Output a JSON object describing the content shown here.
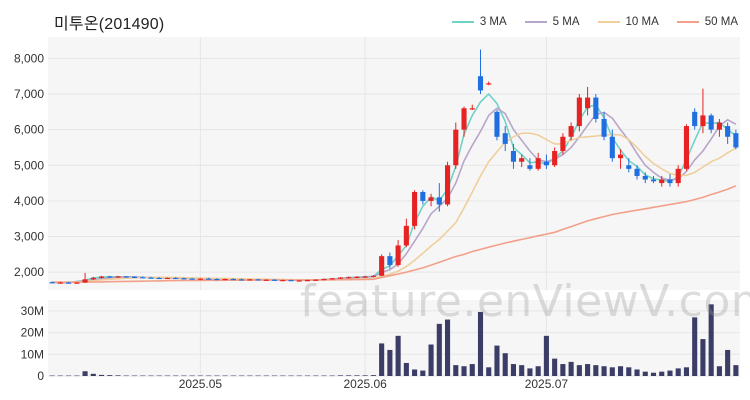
{
  "title": "미투온(201490)",
  "legend": [
    {
      "name": "3 MA",
      "color": "#6fd3c8"
    },
    {
      "name": "5 MA",
      "color": "#b7a6c9"
    },
    {
      "name": "10 MA",
      "color": "#f0cf9c"
    },
    {
      "name": "50 MA",
      "color": "#f2a08a"
    }
  ],
  "watermark": "feature.enViewV.com",
  "colors": {
    "up": "#e62222",
    "down": "#1f6fe0",
    "volume": "#3b3d66",
    "grid": "#e6e6e6",
    "panel": "#f6f6f6"
  },
  "chart_data": {
    "type": "candlestick",
    "price_axis": {
      "ticks": [
        2000,
        3000,
        4000,
        5000,
        6000,
        7000,
        8000
      ],
      "labels": [
        "2,000",
        "3,000",
        "4,000",
        "5,000",
        "6,000",
        "7,000",
        "8,000"
      ],
      "ylim": [
        1500,
        8600
      ]
    },
    "volume_axis": {
      "ticks": [
        0,
        10,
        20,
        30
      ],
      "labels": [
        "0",
        "10M",
        "20M",
        "30M"
      ],
      "unit": "M",
      "ylim": [
        0,
        35
      ]
    },
    "date_ticks": [
      {
        "index": 18,
        "label": "2025.05"
      },
      {
        "index": 38,
        "label": "2025.06"
      },
      {
        "index": 60,
        "label": "2025.07"
      }
    ],
    "candles": [
      [
        1720,
        1740,
        1690,
        1700,
        0.2
      ],
      [
        1700,
        1730,
        1680,
        1710,
        0.2
      ],
      [
        1710,
        1730,
        1690,
        1700,
        0.2
      ],
      [
        1700,
        1720,
        1680,
        1710,
        0.2
      ],
      [
        1710,
        1980,
        1700,
        1800,
        2.2
      ],
      [
        1800,
        1870,
        1780,
        1840,
        1.0
      ],
      [
        1840,
        1900,
        1820,
        1880,
        0.5
      ],
      [
        1880,
        1900,
        1850,
        1870,
        0.4
      ],
      [
        1870,
        1900,
        1850,
        1880,
        0.3
      ],
      [
        1880,
        1890,
        1860,
        1870,
        0.2
      ],
      [
        1870,
        1890,
        1850,
        1860,
        0.2
      ],
      [
        1860,
        1880,
        1840,
        1850,
        0.2
      ],
      [
        1850,
        1870,
        1830,
        1840,
        0.2
      ],
      [
        1840,
        1860,
        1820,
        1830,
        0.2
      ],
      [
        1830,
        1850,
        1810,
        1840,
        0.2
      ],
      [
        1840,
        1860,
        1820,
        1830,
        0.2
      ],
      [
        1830,
        1850,
        1810,
        1820,
        0.2
      ],
      [
        1820,
        1840,
        1800,
        1810,
        0.2
      ],
      [
        1810,
        1830,
        1790,
        1820,
        0.2
      ],
      [
        1820,
        1840,
        1800,
        1810,
        0.2
      ],
      [
        1810,
        1830,
        1790,
        1800,
        0.2
      ],
      [
        1800,
        1820,
        1780,
        1810,
        0.2
      ],
      [
        1810,
        1830,
        1790,
        1800,
        0.2
      ],
      [
        1800,
        1820,
        1780,
        1790,
        0.2
      ],
      [
        1790,
        1810,
        1770,
        1800,
        0.2
      ],
      [
        1800,
        1810,
        1770,
        1780,
        0.2
      ],
      [
        1780,
        1800,
        1760,
        1790,
        0.2
      ],
      [
        1790,
        1800,
        1760,
        1770,
        0.2
      ],
      [
        1770,
        1790,
        1750,
        1780,
        0.2
      ],
      [
        1780,
        1790,
        1750,
        1760,
        0.2
      ],
      [
        1760,
        1780,
        1740,
        1770,
        0.2
      ],
      [
        1770,
        1790,
        1750,
        1780,
        0.2
      ],
      [
        1780,
        1800,
        1760,
        1790,
        0.2
      ],
      [
        1790,
        1820,
        1770,
        1810,
        0.2
      ],
      [
        1810,
        1840,
        1790,
        1830,
        0.2
      ],
      [
        1830,
        1860,
        1810,
        1850,
        0.3
      ],
      [
        1850,
        1880,
        1830,
        1860,
        0.3
      ],
      [
        1860,
        1890,
        1840,
        1870,
        0.3
      ],
      [
        1870,
        1900,
        1850,
        1880,
        0.3
      ],
      [
        1880,
        1920,
        1860,
        1900,
        0.4
      ],
      [
        1900,
        2500,
        1890,
        2450,
        15.0
      ],
      [
        2450,
        2550,
        2100,
        2200,
        12.0
      ],
      [
        2200,
        2900,
        2150,
        2750,
        18.5
      ],
      [
        2750,
        3500,
        2700,
        3300,
        6.0
      ],
      [
        3300,
        4300,
        3200,
        4250,
        3.0
      ],
      [
        4250,
        4300,
        3900,
        4000,
        2.5
      ],
      [
        4000,
        4200,
        3850,
        4100,
        14.5
      ],
      [
        4100,
        4500,
        3700,
        3900,
        24.0
      ],
      [
        3900,
        5100,
        3850,
        5000,
        26.0
      ],
      [
        5000,
        6200,
        4900,
        6000,
        5.0
      ],
      [
        6000,
        6650,
        5800,
        6600,
        4.5
      ],
      [
        6600,
        6700,
        6550,
        6600,
        5.5
      ],
      [
        7500,
        8250,
        7000,
        7100,
        29.5
      ],
      [
        7300,
        7350,
        7250,
        7300,
        4.0
      ],
      [
        6500,
        6550,
        5700,
        5800,
        14.0
      ],
      [
        5900,
        6100,
        5400,
        5600,
        10.5
      ],
      [
        5400,
        5600,
        4900,
        5100,
        5.5
      ],
      [
        5100,
        5300,
        4950,
        5200,
        5.0
      ],
      [
        5000,
        5200,
        4850,
        4900,
        3.5
      ],
      [
        4900,
        5350,
        4850,
        5200,
        4.5
      ],
      [
        5100,
        5300,
        4900,
        5000,
        18.5
      ],
      [
        5000,
        5500,
        4950,
        5400,
        8.0
      ],
      [
        5400,
        5900,
        5300,
        5800,
        5.5
      ],
      [
        5800,
        6200,
        5700,
        6100,
        6.5
      ],
      [
        6100,
        7000,
        5950,
        6900,
        5.0
      ],
      [
        6600,
        7200,
        6400,
        6900,
        5.5
      ],
      [
        6900,
        7000,
        6200,
        6300,
        5.0
      ],
      [
        6300,
        6500,
        5700,
        5800,
        4.5
      ],
      [
        5800,
        6000,
        5100,
        5200,
        4.0
      ],
      [
        5200,
        5450,
        4900,
        5300,
        4.5
      ],
      [
        5000,
        5200,
        4800,
        4900,
        4.0
      ],
      [
        4900,
        5000,
        4600,
        4700,
        3.0
      ],
      [
        4700,
        4800,
        4500,
        4600,
        2.0
      ],
      [
        4600,
        4700,
        4500,
        4550,
        1.5
      ],
      [
        4500,
        4700,
        4400,
        4600,
        2.0
      ],
      [
        4600,
        4750,
        4400,
        4500,
        2.5
      ],
      [
        4500,
        5000,
        4400,
        4900,
        3.5
      ],
      [
        4900,
        6150,
        4850,
        6100,
        4.0
      ],
      [
        6500,
        6600,
        6000,
        6100,
        27.0
      ],
      [
        6100,
        7150,
        5900,
        6400,
        17.0
      ],
      [
        6400,
        6450,
        5900,
        6000,
        33.0
      ],
      [
        6000,
        6300,
        5800,
        6200,
        4.5
      ],
      [
        6100,
        6200,
        5600,
        5800,
        12.0
      ],
      [
        5900,
        6000,
        5450,
        5500,
        5.0
      ]
    ],
    "moving_averages": {
      "3 MA": [
        1710,
        1705,
        1700,
        1740,
        1770,
        1840,
        1860,
        1870,
        1870,
        1870,
        1860,
        1850,
        1840,
        1835,
        1835,
        1830,
        1828,
        1822,
        1818,
        1812,
        1808,
        1805,
        1803,
        1800,
        1796,
        1791,
        1788,
        1783,
        1778,
        1776,
        1773,
        1776,
        1783,
        1795,
        1810,
        1830,
        1848,
        1860,
        1870,
        1883,
        2078,
        2180,
        2466,
        2750,
        3400,
        3850,
        4110,
        4000,
        4330,
        4970,
        5870,
        6400,
        6780,
        7000,
        6730,
        6230,
        5500,
        5300,
        5070,
        5100,
        5030,
        5200,
        5400,
        5770,
        6270,
        6630,
        6700,
        6330,
        5770,
        5430,
        5130,
        4970,
        4730,
        4620,
        4580,
        4550,
        4670,
        5170,
        5700,
        6200,
        6170,
        6200,
        6000,
        5830
      ],
      "5 MA": [
        1715,
        1712,
        1710,
        1730,
        1750,
        1790,
        1820,
        1840,
        1860,
        1870,
        1868,
        1860,
        1852,
        1845,
        1840,
        1835,
        1830,
        1826,
        1820,
        1815,
        1810,
        1808,
        1805,
        1802,
        1798,
        1795,
        1792,
        1788,
        1784,
        1780,
        1778,
        1778,
        1780,
        1790,
        1800,
        1815,
        1830,
        1845,
        1860,
        1872,
        1990,
        2070,
        2230,
        2520,
        2870,
        3230,
        3640,
        3850,
        4070,
        4500,
        5120,
        5560,
        5950,
        6400,
        6600,
        6450,
        6000,
        5700,
        5400,
        5150,
        5100,
        5170,
        5300,
        5500,
        5800,
        6120,
        6430,
        6480,
        6320,
        6000,
        5700,
        5330,
        5000,
        4800,
        4640,
        4580,
        4620,
        4830,
        5150,
        5400,
        5740,
        6100,
        6280,
        6150
      ],
      "10 MA": [
        1720,
        1718,
        1716,
        1725,
        1735,
        1760,
        1780,
        1800,
        1815,
        1830,
        1840,
        1848,
        1852,
        1855,
        1856,
        1850,
        1845,
        1840,
        1835,
        1830,
        1825,
        1820,
        1817,
        1814,
        1810,
        1806,
        1802,
        1798,
        1794,
        1790,
        1786,
        1784,
        1782,
        1783,
        1785,
        1790,
        1797,
        1805,
        1815,
        1825,
        1885,
        1940,
        2030,
        2160,
        2335,
        2530,
        2735,
        2920,
        3150,
        3390,
        3800,
        4250,
        4700,
        5100,
        5380,
        5650,
        5800,
        5900,
        5900,
        5850,
        5720,
        5600,
        5600,
        5700,
        5780,
        5800,
        5820,
        5850,
        5860,
        5850,
        5720,
        5500,
        5250,
        5050,
        4900,
        4770,
        4720,
        4720,
        4800,
        4950,
        5100,
        5200,
        5350,
        5480
      ],
      "50 MA": [
        1720,
        1720,
        1720,
        1720,
        1722,
        1725,
        1728,
        1732,
        1736,
        1740,
        1744,
        1748,
        1752,
        1756,
        1760,
        1763,
        1766,
        1768,
        1770,
        1772,
        1773,
        1774,
        1775,
        1776,
        1777,
        1778,
        1779,
        1780,
        1781,
        1782,
        1782,
        1783,
        1784,
        1785,
        1786,
        1788,
        1790,
        1793,
        1797,
        1801,
        1850,
        1900,
        1950,
        2000,
        2060,
        2120,
        2200,
        2280,
        2360,
        2440,
        2500,
        2580,
        2640,
        2700,
        2760,
        2820,
        2870,
        2920,
        2970,
        3020,
        3070,
        3120,
        3200,
        3280,
        3360,
        3440,
        3500,
        3560,
        3620,
        3660,
        3700,
        3740,
        3780,
        3820,
        3860,
        3900,
        3940,
        3980,
        4040,
        4100,
        4180,
        4250,
        4330,
        4420
      ]
    }
  }
}
